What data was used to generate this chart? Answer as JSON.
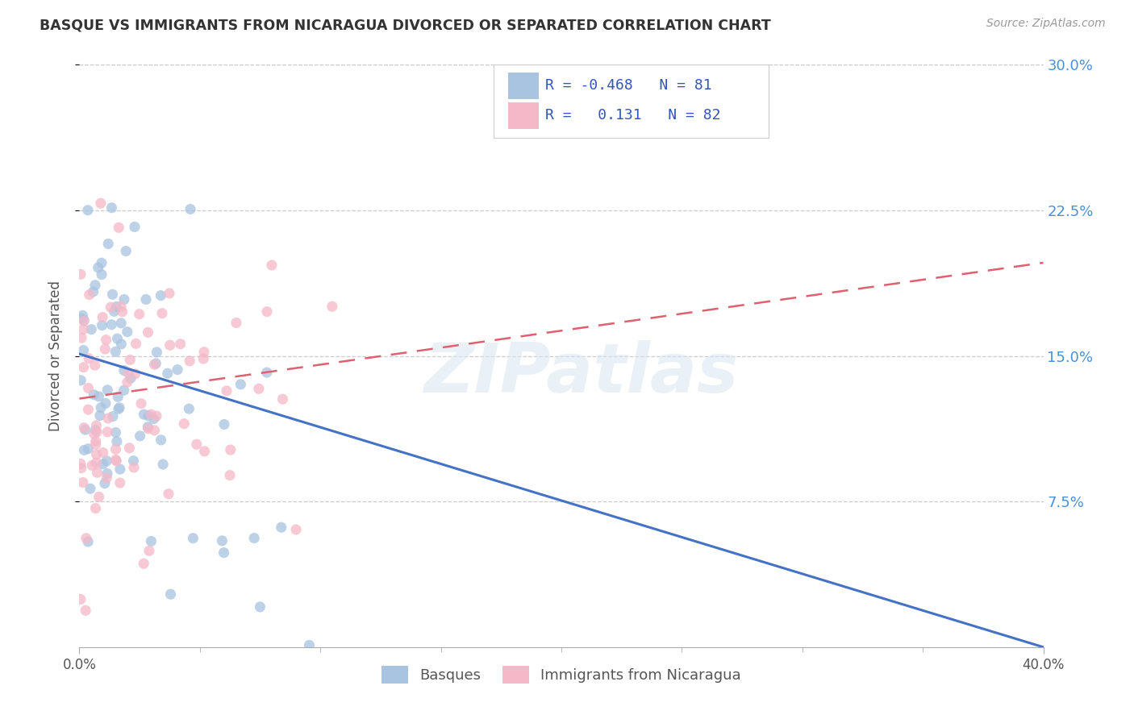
{
  "title": "BASQUE VS IMMIGRANTS FROM NICARAGUA DIVORCED OR SEPARATED CORRELATION CHART",
  "source": "Source: ZipAtlas.com",
  "ylabel": "Divorced or Separated",
  "legend_label1": "Basques",
  "legend_label2": "Immigrants from Nicaragua",
  "r1": -0.468,
  "n1": 81,
  "r2": 0.131,
  "n2": 82,
  "color1": "#a8c4e0",
  "color2": "#f4b8c8",
  "line_color1": "#4472c4",
  "line_color2": "#e06070",
  "watermark": "ZIPatlas",
  "xlim": [
    0.0,
    0.4
  ],
  "ylim": [
    0.0,
    0.3
  ],
  "yticks_right": [
    0.075,
    0.15,
    0.225,
    0.3
  ],
  "ytick_labels_right": [
    "7.5%",
    "15.0%",
    "22.5%",
    "30.0%"
  ],
  "xtick_minor_positions": [
    0.05,
    0.1,
    0.15,
    0.2,
    0.25,
    0.3,
    0.35
  ],
  "basque_line": [
    0.151,
    0.0
  ],
  "nicaragua_line": [
    0.128,
    0.198
  ]
}
